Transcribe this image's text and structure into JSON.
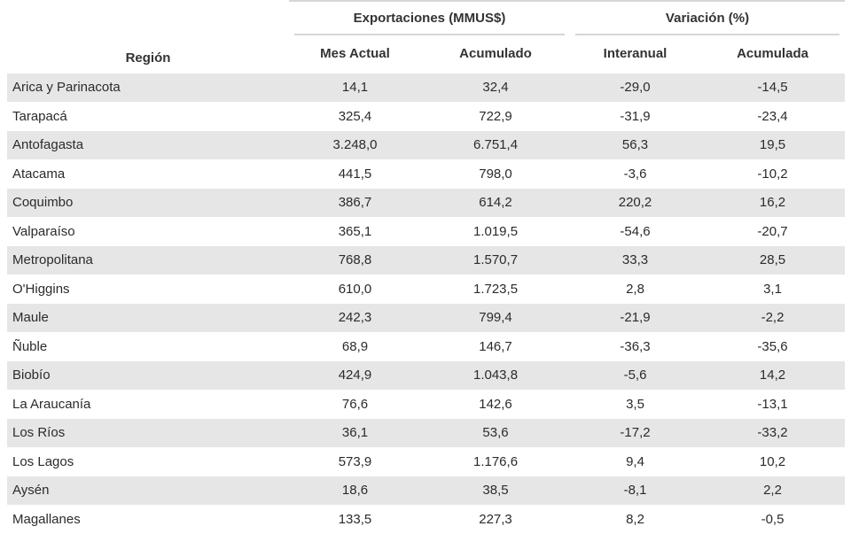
{
  "header": {
    "region_label": "Región",
    "group_exports": "Exportaciones (MMUS$)",
    "group_variation": "Variación (%)",
    "col_mes_actual": "Mes Actual",
    "col_acumulado": "Acumulado",
    "col_interanual": "Interanual",
    "col_acumulada": "Acumulada"
  },
  "rows": [
    {
      "region": "Arica y Parinacota",
      "mes_actual": "14,1",
      "acumulado": "32,4",
      "interanual": "-29,0",
      "acumulada": "-14,5"
    },
    {
      "region": "Tarapacá",
      "mes_actual": "325,4",
      "acumulado": "722,9",
      "interanual": "-31,9",
      "acumulada": "-23,4"
    },
    {
      "region": "Antofagasta",
      "mes_actual": "3.248,0",
      "acumulado": "6.751,4",
      "interanual": "56,3",
      "acumulada": "19,5"
    },
    {
      "region": "Atacama",
      "mes_actual": "441,5",
      "acumulado": "798,0",
      "interanual": "-3,6",
      "acumulada": "-10,2"
    },
    {
      "region": "Coquimbo",
      "mes_actual": "386,7",
      "acumulado": "614,2",
      "interanual": "220,2",
      "acumulada": "16,2"
    },
    {
      "region": "Valparaíso",
      "mes_actual": "365,1",
      "acumulado": "1.019,5",
      "interanual": "-54,6",
      "acumulada": "-20,7"
    },
    {
      "region": "Metropolitana",
      "mes_actual": "768,8",
      "acumulado": "1.570,7",
      "interanual": "33,3",
      "acumulada": "28,5"
    },
    {
      "region": "O'Higgins",
      "mes_actual": "610,0",
      "acumulado": "1.723,5",
      "interanual": "2,8",
      "acumulada": "3,1"
    },
    {
      "region": "Maule",
      "mes_actual": "242,3",
      "acumulado": "799,4",
      "interanual": "-21,9",
      "acumulada": "-2,2"
    },
    {
      "region": "Ñuble",
      "mes_actual": "68,9",
      "acumulado": "146,7",
      "interanual": "-36,3",
      "acumulada": "-35,6"
    },
    {
      "region": "Biobío",
      "mes_actual": "424,9",
      "acumulado": "1.043,8",
      "interanual": "-5,6",
      "acumulada": "14,2"
    },
    {
      "region": "La Araucanía",
      "mes_actual": "76,6",
      "acumulado": "142,6",
      "interanual": "3,5",
      "acumulada": "-13,1"
    },
    {
      "region": "Los Ríos",
      "mes_actual": "36,1",
      "acumulado": "53,6",
      "interanual": "-17,2",
      "acumulada": "-33,2"
    },
    {
      "region": "Los Lagos",
      "mes_actual": "573,9",
      "acumulado": "1.176,6",
      "interanual": "9,4",
      "acumulada": "10,2"
    },
    {
      "region": "Aysén",
      "mes_actual": "18,6",
      "acumulado": "38,5",
      "interanual": "-8,1",
      "acumulada": "2,2"
    },
    {
      "region": "Magallanes",
      "mes_actual": "133,5",
      "acumulado": "227,3",
      "interanual": "8,2",
      "acumulada": "-0,5"
    }
  ],
  "colors": {
    "stripe": "#e6e6e6",
    "rule": "#d6d6d6",
    "text": "#2b2b2b"
  }
}
